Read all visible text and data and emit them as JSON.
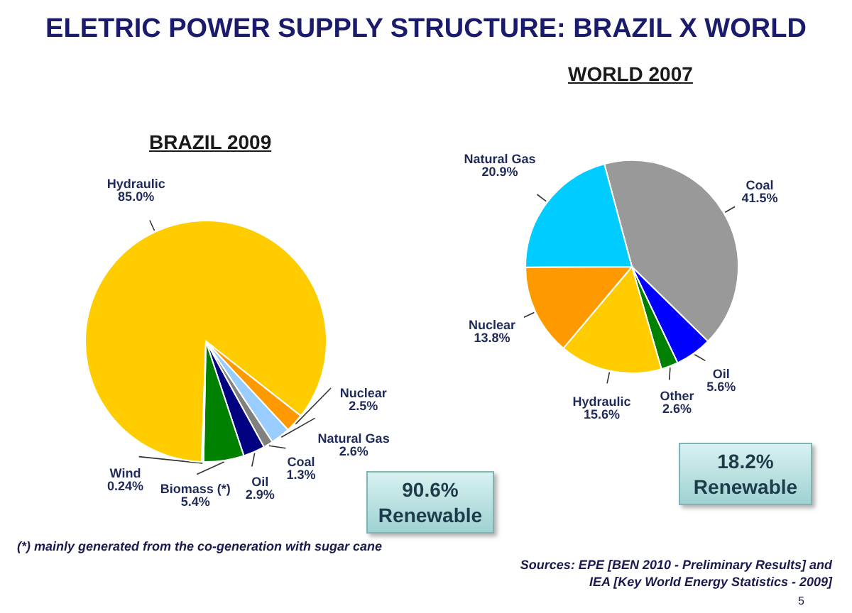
{
  "chart_data": [
    {
      "type": "pie",
      "title": "ELETRIC POWER SUPPLY STRUCTURE: BRAZIL X WORLD",
      "subtitle": "BRAZIL 2009",
      "categories": [
        "Hydraulic",
        "Nuclear",
        "Natural Gas",
        "Coal",
        "Oil",
        "Biomass (*)",
        "Wind"
      ],
      "values": [
        85.0,
        2.5,
        2.6,
        1.3,
        2.9,
        5.4,
        0.24
      ],
      "value_labels": [
        "85.0%",
        "2.5%",
        "2.6%",
        "1.3%",
        "2.9%",
        "5.4%",
        "0.24%"
      ],
      "colors": [
        "#ffcc00",
        "#ff9900",
        "#99ccff",
        "#808080",
        "#000080",
        "#008000",
        "#ccffcc"
      ],
      "annotations": [
        "90.6% Renewable",
        "(*) mainly generated from the co-generation with sugar cane"
      ]
    },
    {
      "type": "pie",
      "title": "WORLD 2007",
      "categories": [
        "Coal",
        "Oil",
        "Other",
        "Hydraulic",
        "Nuclear",
        "Natural Gas"
      ],
      "values": [
        41.5,
        5.6,
        2.6,
        15.6,
        13.8,
        20.9
      ],
      "value_labels": [
        "41.5%",
        "5.6%",
        "2.6%",
        "15.6%",
        "13.8%",
        "20.9%"
      ],
      "colors": [
        "#999999",
        "#0000ff",
        "#008000",
        "#ffcc00",
        "#ff9900",
        "#00ccff"
      ],
      "annotations": [
        "18.2% Renewable",
        "Sources: EPE [BEN 2010 - Preliminary Results] and IEA [Key World Energy Statistics - 2009]",
        "5"
      ]
    }
  ]
}
